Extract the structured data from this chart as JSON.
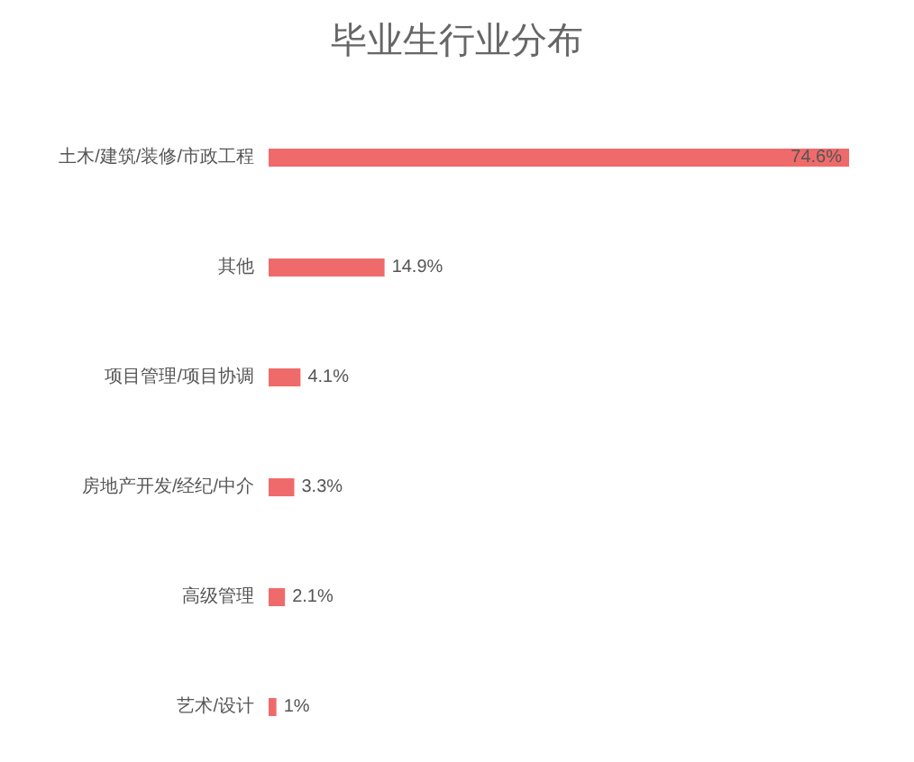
{
  "chart_data": {
    "type": "bar",
    "orientation": "horizontal",
    "title": "毕业生行业分布",
    "categories": [
      "土木/建筑/装修/市政工程",
      "其他",
      "项目管理/项目协调",
      "房地产开发/经纪/中介",
      "高级管理",
      "艺术/设计"
    ],
    "values": [
      74.6,
      14.9,
      4.1,
      3.3,
      2.1,
      1
    ],
    "value_labels": [
      "74.6%",
      "14.9%",
      "4.1%",
      "3.3%",
      "2.1%",
      "1%"
    ],
    "color": "#ef6b6b",
    "tick_labels": "y"
  }
}
